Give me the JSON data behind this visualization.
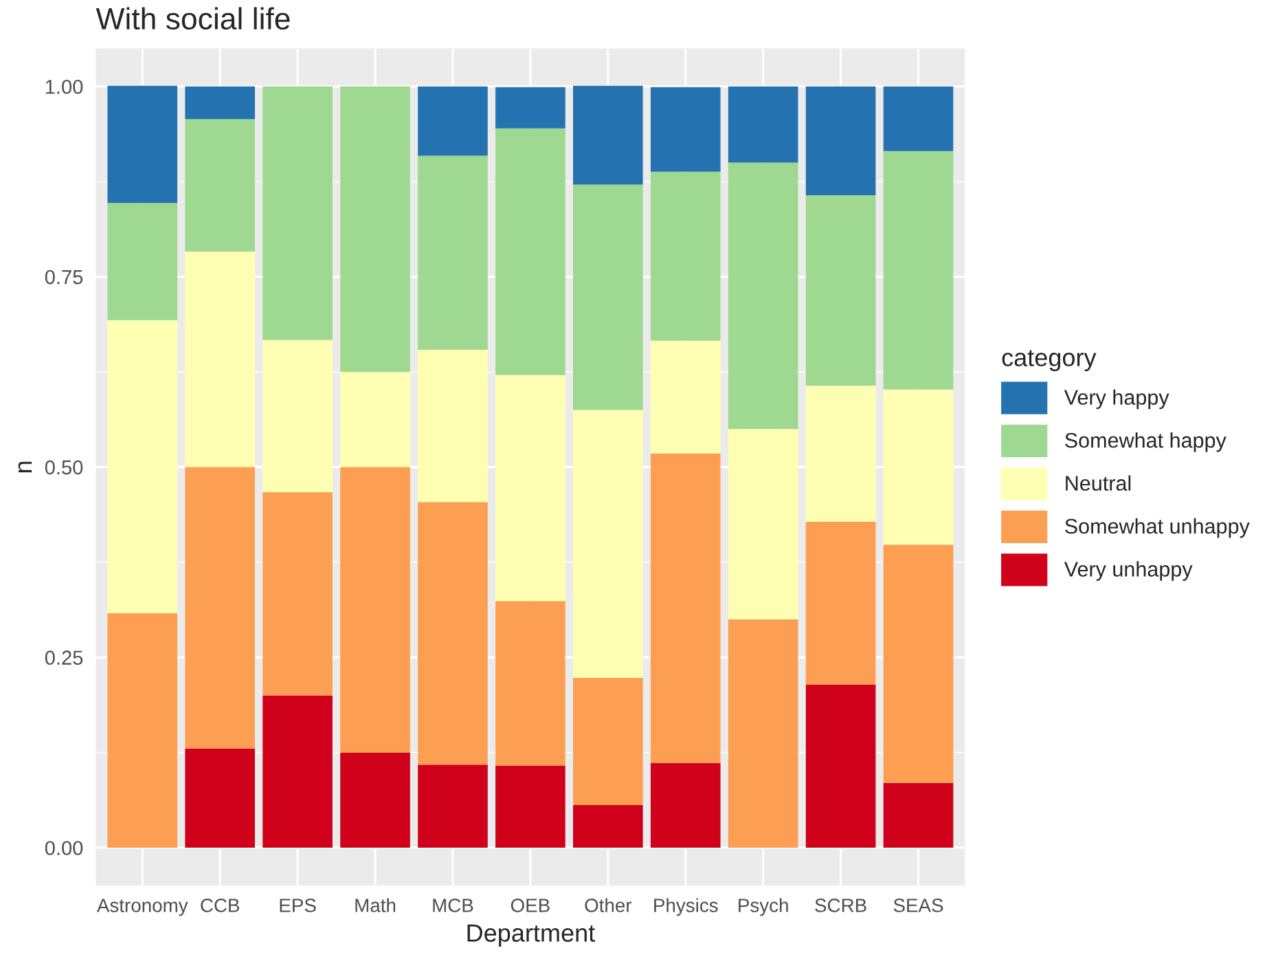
{
  "chart_data": {
    "type": "bar",
    "title": "With social life",
    "xlabel": "Department",
    "ylabel": "n",
    "legend_title": "category",
    "categories": [
      "Astronomy",
      "CCB",
      "EPS",
      "Math",
      "MCB",
      "OEB",
      "Other",
      "Physics",
      "Psych",
      "SCRB",
      "SEAS"
    ],
    "stacked": true,
    "series": [
      {
        "name": "Very unhappy",
        "color": "#d0011b",
        "values": [
          0,
          0.13,
          0.2,
          0.125,
          0.109,
          0.108,
          0.056,
          0.111,
          0,
          0.214,
          0.085
        ]
      },
      {
        "name": "Somewhat unhappy",
        "color": "#fc9f53",
        "values": [
          0.308,
          0.37,
          0.267,
          0.375,
          0.345,
          0.216,
          0.167,
          0.407,
          0.3,
          0.214,
          0.313
        ]
      },
      {
        "name": "Neutral",
        "color": "#ffffb3",
        "values": [
          0.385,
          0.283,
          0.2,
          0.125,
          0.2,
          0.297,
          0.352,
          0.148,
          0.25,
          0.179,
          0.204
        ]
      },
      {
        "name": "Somewhat happy",
        "color": "#9fd890",
        "values": [
          0.154,
          0.174,
          0.333,
          0.375,
          0.255,
          0.324,
          0.296,
          0.222,
          0.35,
          0.25,
          0.313
        ]
      },
      {
        "name": "Very happy",
        "color": "#2473b0",
        "values": [
          0.154,
          0.043,
          0,
          0,
          0.091,
          0.054,
          0.13,
          0.111,
          0.1,
          0.143,
          0.085
        ]
      }
    ],
    "ylim": [
      -0.05,
      1.05
    ],
    "yticks": [
      {
        "value": 0,
        "label": "0.00"
      },
      {
        "value": 0.25,
        "label": "0.25"
      },
      {
        "value": 0.5,
        "label": "0.50"
      },
      {
        "value": 0.75,
        "label": "0.75"
      },
      {
        "value": 1,
        "label": "1.00"
      }
    ],
    "grid": true,
    "legend": "right"
  }
}
